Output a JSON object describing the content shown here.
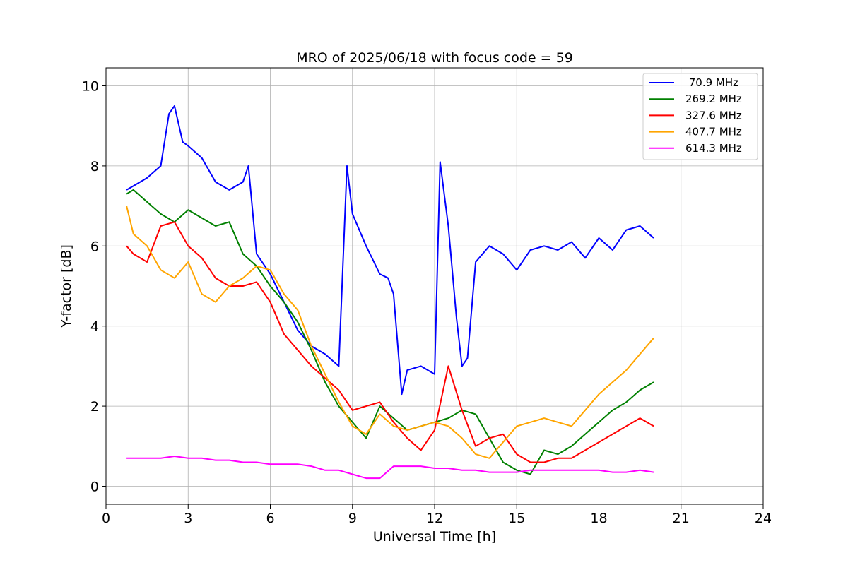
{
  "chart_data": {
    "type": "line",
    "title": "MRO of 2025/06/18 with focus code = 59",
    "xlabel": "Universal Time [h]",
    "ylabel": "Y-factor [dB]",
    "xlim": [
      0,
      24
    ],
    "ylim": [
      -0.45,
      10.45
    ],
    "xticks": [
      0,
      3,
      6,
      9,
      12,
      15,
      18,
      21,
      24
    ],
    "xtick_labels": [
      "0",
      "3",
      "6",
      "9",
      "12",
      "15",
      "18",
      "21",
      "24"
    ],
    "yticks": [
      0,
      2,
      4,
      6,
      8,
      10
    ],
    "ytick_labels": [
      "0",
      "2",
      "4",
      "6",
      "8",
      "10"
    ],
    "grid": true,
    "legend_position": "top-right",
    "series": [
      {
        "name": " 70.9 MHz",
        "color": "#0000ff",
        "x": [
          0.75,
          1.0,
          1.5,
          2.0,
          2.3,
          2.5,
          2.8,
          3.0,
          3.5,
          4.0,
          4.5,
          5.0,
          5.2,
          5.5,
          6.0,
          6.5,
          7.0,
          7.5,
          8.0,
          8.5,
          8.8,
          9.0,
          9.5,
          10.0,
          10.3,
          10.5,
          10.8,
          11.0,
          11.5,
          12.0,
          12.2,
          12.5,
          12.8,
          13.0,
          13.2,
          13.5,
          14.0,
          14.5,
          15.0,
          15.5,
          16.0,
          16.5,
          17.0,
          17.5,
          18.0,
          18.5,
          19.0,
          19.5,
          20.0
        ],
        "y": [
          7.4,
          7.5,
          7.7,
          8.0,
          9.3,
          9.5,
          8.6,
          8.5,
          8.2,
          7.6,
          7.4,
          7.6,
          8.0,
          5.8,
          5.3,
          4.6,
          3.9,
          3.5,
          3.3,
          3.0,
          8.0,
          6.8,
          6.0,
          5.3,
          5.2,
          4.8,
          2.3,
          2.9,
          3.0,
          2.8,
          8.1,
          6.5,
          4.2,
          3.0,
          3.2,
          5.6,
          6.0,
          5.8,
          5.4,
          5.9,
          6.0,
          5.9,
          6.1,
          5.7,
          6.2,
          5.9,
          6.4,
          6.5,
          6.2
        ]
      },
      {
        "name": "269.2 MHz",
        "color": "#008000",
        "x": [
          0.75,
          1.0,
          1.5,
          2.0,
          2.5,
          3.0,
          3.5,
          4.0,
          4.5,
          5.0,
          5.5,
          6.0,
          6.5,
          7.0,
          7.5,
          8.0,
          8.5,
          9.0,
          9.5,
          10.0,
          10.5,
          11.0,
          11.5,
          12.0,
          12.5,
          13.0,
          13.5,
          14.0,
          14.5,
          15.0,
          15.5,
          16.0,
          16.5,
          17.0,
          17.5,
          18.0,
          18.5,
          19.0,
          19.5,
          20.0
        ],
        "y": [
          7.3,
          7.4,
          7.1,
          6.8,
          6.6,
          6.9,
          6.7,
          6.5,
          6.6,
          5.8,
          5.5,
          5.0,
          4.6,
          4.1,
          3.4,
          2.6,
          2.0,
          1.6,
          1.2,
          2.0,
          1.7,
          1.4,
          1.5,
          1.6,
          1.7,
          1.9,
          1.8,
          1.2,
          0.6,
          0.4,
          0.3,
          0.9,
          0.8,
          1.0,
          1.3,
          1.6,
          1.9,
          2.1,
          2.4,
          2.6
        ]
      },
      {
        "name": "327.6 MHz",
        "color": "#ff0000",
        "x": [
          0.75,
          1.0,
          1.5,
          2.0,
          2.5,
          3.0,
          3.5,
          4.0,
          4.5,
          5.0,
          5.5,
          6.0,
          6.5,
          7.0,
          7.5,
          8.0,
          8.5,
          9.0,
          9.5,
          10.0,
          10.5,
          11.0,
          11.5,
          12.0,
          12.5,
          13.0,
          13.5,
          14.0,
          14.5,
          15.0,
          15.5,
          16.0,
          16.5,
          17.0,
          17.5,
          18.0,
          18.5,
          19.0,
          19.5,
          20.0
        ],
        "y": [
          6.0,
          5.8,
          5.6,
          6.5,
          6.6,
          6.0,
          5.7,
          5.2,
          5.0,
          5.0,
          5.1,
          4.6,
          3.8,
          3.4,
          3.0,
          2.7,
          2.4,
          1.9,
          2.0,
          2.1,
          1.6,
          1.2,
          0.9,
          1.4,
          3.0,
          1.9,
          1.0,
          1.2,
          1.3,
          0.8,
          0.6,
          0.6,
          0.7,
          0.7,
          0.9,
          1.1,
          1.3,
          1.5,
          1.7,
          1.5
        ]
      },
      {
        "name": "407.7 MHz",
        "color": "#ffa500",
        "x": [
          0.75,
          1.0,
          1.5,
          2.0,
          2.5,
          3.0,
          3.5,
          4.0,
          4.5,
          5.0,
          5.5,
          6.0,
          6.5,
          7.0,
          7.5,
          8.0,
          8.5,
          9.0,
          9.5,
          10.0,
          10.5,
          11.0,
          11.5,
          12.0,
          12.5,
          13.0,
          13.5,
          14.0,
          14.5,
          15.0,
          15.5,
          16.0,
          16.5,
          17.0,
          17.5,
          18.0,
          18.5,
          19.0,
          19.5,
          20.0
        ],
        "y": [
          7.0,
          6.3,
          6.0,
          5.4,
          5.2,
          5.6,
          4.8,
          4.6,
          5.0,
          5.2,
          5.5,
          5.4,
          4.8,
          4.4,
          3.5,
          2.8,
          2.1,
          1.5,
          1.3,
          1.8,
          1.5,
          1.4,
          1.5,
          1.6,
          1.5,
          1.2,
          0.8,
          0.7,
          1.1,
          1.5,
          1.6,
          1.7,
          1.6,
          1.5,
          1.9,
          2.3,
          2.6,
          2.9,
          3.3,
          3.7
        ]
      },
      {
        "name": "614.3 MHz",
        "color": "#ff00ff",
        "x": [
          0.75,
          1.0,
          1.5,
          2.0,
          2.5,
          3.0,
          3.5,
          4.0,
          4.5,
          5.0,
          5.5,
          6.0,
          6.5,
          7.0,
          7.5,
          8.0,
          8.5,
          9.0,
          9.5,
          10.0,
          10.5,
          11.0,
          11.5,
          12.0,
          12.5,
          13.0,
          13.5,
          14.0,
          14.5,
          15.0,
          15.5,
          16.0,
          16.5,
          17.0,
          17.5,
          18.0,
          18.5,
          19.0,
          19.5,
          20.0
        ],
        "y": [
          0.7,
          0.7,
          0.7,
          0.7,
          0.75,
          0.7,
          0.7,
          0.65,
          0.65,
          0.6,
          0.6,
          0.55,
          0.55,
          0.55,
          0.5,
          0.4,
          0.4,
          0.3,
          0.2,
          0.2,
          0.5,
          0.5,
          0.5,
          0.45,
          0.45,
          0.4,
          0.4,
          0.35,
          0.35,
          0.35,
          0.4,
          0.4,
          0.4,
          0.4,
          0.4,
          0.4,
          0.35,
          0.35,
          0.4,
          0.35
        ]
      }
    ]
  }
}
